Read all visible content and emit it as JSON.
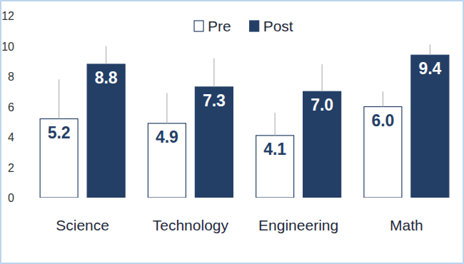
{
  "chart_data": {
    "type": "bar",
    "categories": [
      "Science",
      "Technology",
      "Engineering",
      "Math"
    ],
    "series": [
      {
        "name": "Pre",
        "color": "#ffffff",
        "values": [
          5.2,
          4.9,
          4.1,
          6.0
        ],
        "value_labels": [
          "5.2",
          "4.9",
          "4.1",
          "6.0"
        ],
        "errors": [
          2.6,
          2.0,
          1.5,
          1.0
        ]
      },
      {
        "name": "Post",
        "color": "#243f66",
        "values": [
          8.8,
          7.3,
          7.0,
          9.4
        ],
        "value_labels": [
          "8.8",
          "7.3",
          "7.0",
          "9.4"
        ],
        "errors": [
          1.2,
          1.9,
          1.8,
          0.7
        ]
      }
    ],
    "ylim": [
      0,
      12
    ],
    "yticks": [
      0,
      2,
      4,
      6,
      8,
      10,
      12
    ],
    "grid": false,
    "legend": "top",
    "data_labels": true
  }
}
